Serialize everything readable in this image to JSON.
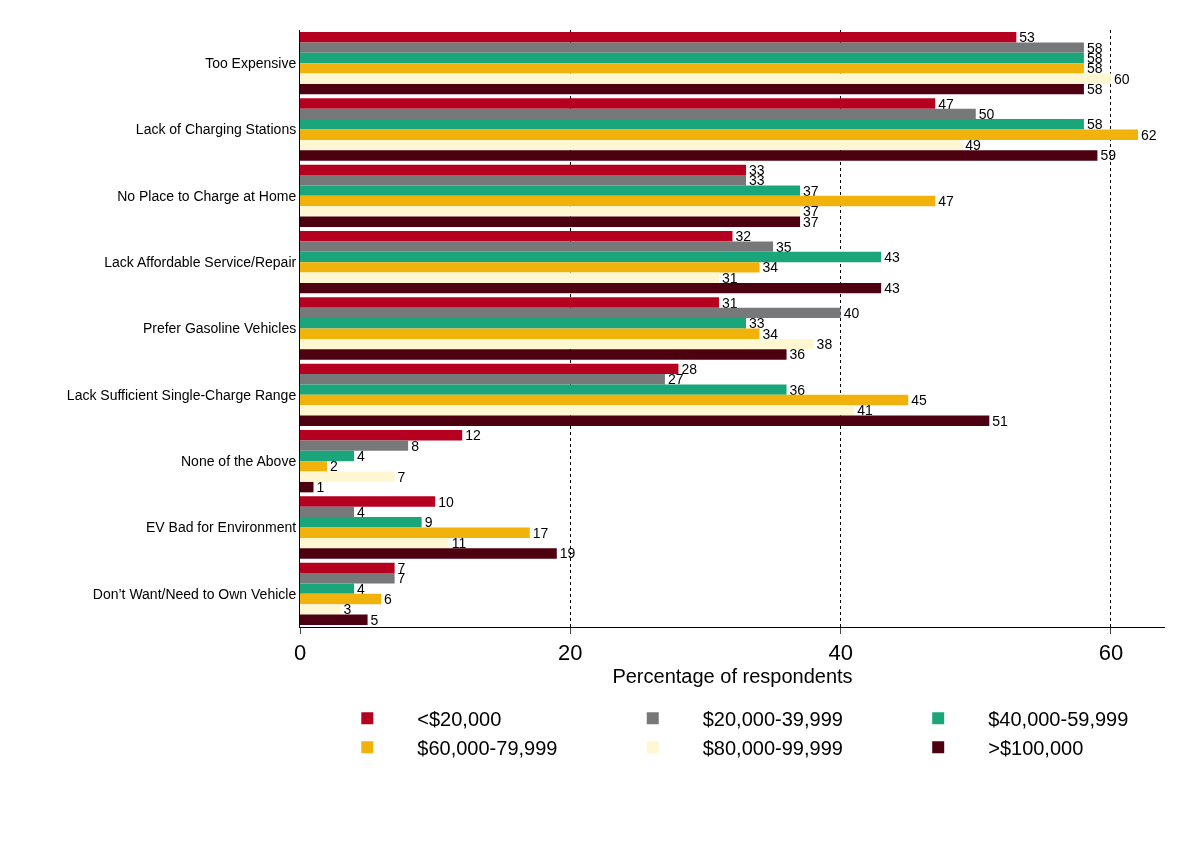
{
  "chart_data": {
    "type": "bar",
    "orientation": "horizontal",
    "xlabel": "Percentage of respondents",
    "categories": [
      "Too Expensive",
      "Lack of Charging Stations",
      "No Place to Charge at Home",
      "Lack Affordable Service/Repair",
      "Prefer Gasoline Vehicles",
      "Lack Sufficient Single-Charge Range",
      "None of the Above",
      "EV Bad for Environment",
      "Don’t Want/Need to Own Vehicle"
    ],
    "series": [
      {
        "name": "<$20,000",
        "color": "#b5001f",
        "values": [
          53,
          47,
          33,
          32,
          31,
          28,
          12,
          10,
          7
        ]
      },
      {
        "name": "$20,000-39,999",
        "color": "#76787a",
        "values": [
          58,
          50,
          33,
          35,
          40,
          27,
          8,
          4,
          7
        ]
      },
      {
        "name": "$40,000-59,999",
        "color": "#1aa67a",
        "values": [
          58,
          58,
          37,
          43,
          33,
          36,
          4,
          9,
          4
        ]
      },
      {
        "name": "$60,000-79,999",
        "color": "#f2b20c",
        "values": [
          58,
          62,
          47,
          34,
          34,
          45,
          2,
          17,
          6
        ]
      },
      {
        "name": "$80,000-99,999",
        "color": "#fff7d2",
        "values": [
          60,
          49,
          37,
          31,
          38,
          41,
          7,
          11,
          3
        ]
      },
      {
        "name": ">$100,000",
        "color": "#4d0010",
        "values": [
          58,
          59,
          37,
          43,
          36,
          51,
          1,
          19,
          5
        ]
      }
    ],
    "xlim": [
      0,
      64
    ],
    "xticks": [
      0,
      20,
      40,
      60
    ],
    "grid": "x",
    "legend": "bottom",
    "data_labels": true
  }
}
